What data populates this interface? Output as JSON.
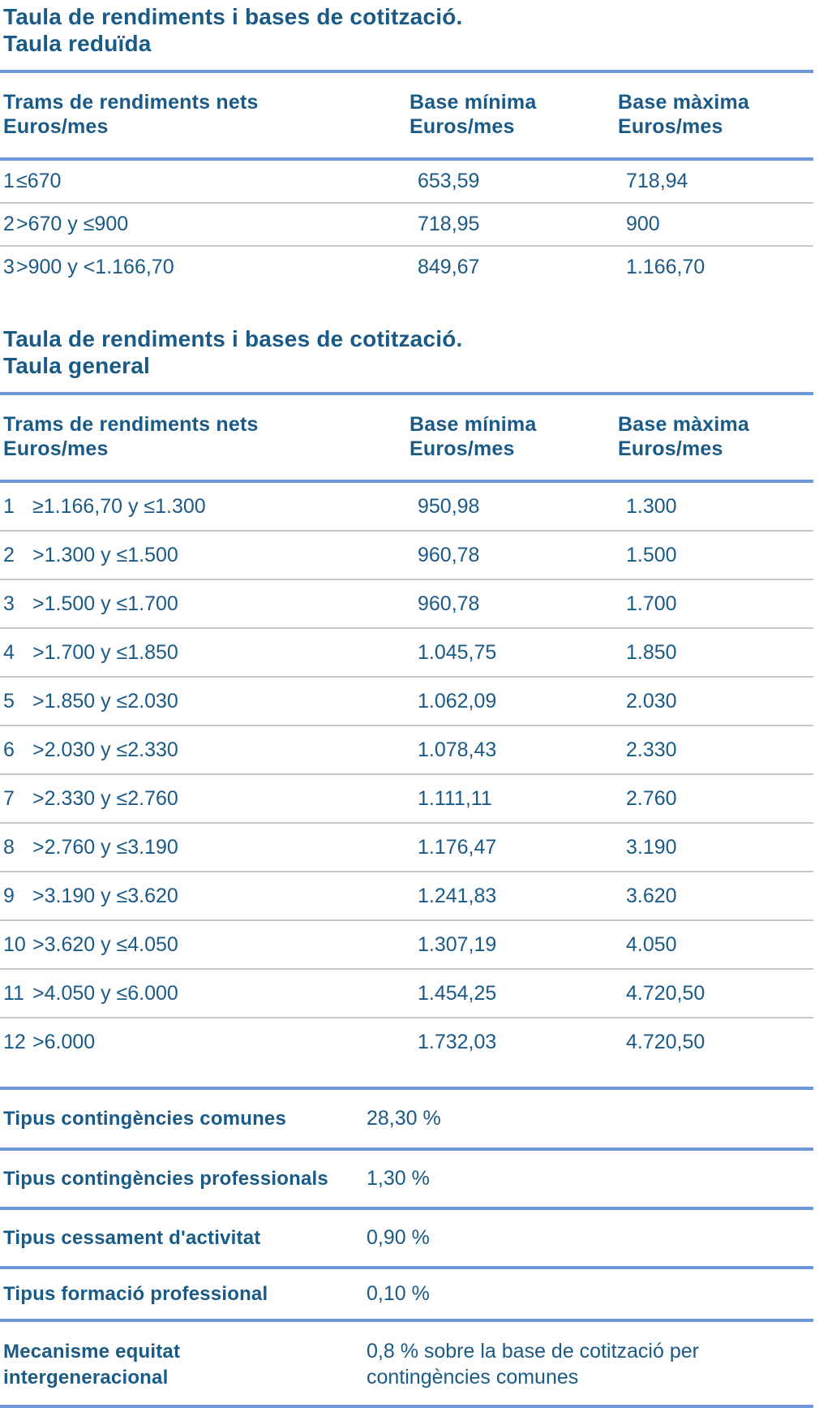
{
  "theme": {
    "text_color": "#1A5A87",
    "accent_line_color": "#6E96D8",
    "row_divider_color": "#C9C9C9",
    "background_color": "#FFFFFF"
  },
  "table_reduced": {
    "title_line1": "Taula de rendiments i bases de cotització.",
    "title_line2": "Taula reduïda",
    "headers": {
      "trams": [
        "Trams de rendiments nets",
        "Euros/mes"
      ],
      "min": [
        "Base mínima",
        "Euros/mes"
      ],
      "max": [
        "Base màxima",
        "Euros/mes"
      ]
    },
    "rows": [
      {
        "num": "1",
        "range": "≤670",
        "min": "653,59",
        "max": "718,94"
      },
      {
        "num": "2",
        "range": ">670 y ≤900",
        "min": "718,95",
        "max": "900"
      },
      {
        "num": "3",
        "range": ">900 y <1.166,70",
        "min": "849,67",
        "max": "1.166,70"
      }
    ]
  },
  "table_general": {
    "title_line1": "Taula de rendiments i bases de cotització.",
    "title_line2": "Taula general",
    "headers": {
      "trams": [
        "Trams de rendiments nets",
        "Euros/mes"
      ],
      "min": [
        "Base mínima",
        "Euros/mes"
      ],
      "max": [
        "Base màxima",
        "Euros/mes"
      ]
    },
    "rows": [
      {
        "num": "1",
        "range": "≥1.166,70 y ≤1.300",
        "min": "950,98",
        "max": "1.300"
      },
      {
        "num": "2",
        "range": ">1.300 y ≤1.500",
        "min": "960,78",
        "max": "1.500"
      },
      {
        "num": "3",
        "range": ">1.500 y ≤1.700",
        "min": "960,78",
        "max": "1.700"
      },
      {
        "num": "4",
        "range": ">1.700 y ≤1.850",
        "min": "1.045,75",
        "max": "1.850"
      },
      {
        "num": "5",
        "range": ">1.850 y ≤2.030",
        "min": "1.062,09",
        "max": "2.030"
      },
      {
        "num": "6",
        "range": ">2.030 y ≤2.330",
        "min": "1.078,43",
        "max": "2.330"
      },
      {
        "num": "7",
        "range": ">2.330 y ≤2.760",
        "min": "1.111,11",
        "max": "2.760"
      },
      {
        "num": "8",
        "range": ">2.760 y ≤3.190",
        "min": "1.176,47",
        "max": "3.190"
      },
      {
        "num": "9",
        "range": ">3.190 y ≤3.620",
        "min": "1.241,83",
        "max": "3.620"
      },
      {
        "num": "10",
        "range": ">3.620 y ≤4.050",
        "min": "1.307,19",
        "max": "4.050"
      },
      {
        "num": "11",
        "range": ">4.050 y ≤6.000",
        "min": "1.454,25",
        "max": "4.720,50"
      },
      {
        "num": "12",
        "range": ">6.000",
        "min": "1.732,03",
        "max": "4.720,50"
      }
    ]
  },
  "rates": [
    {
      "label": "Tipus contingències comunes",
      "value": "28,30 %"
    },
    {
      "label": "Tipus contingències professionals",
      "value": "1,30 %"
    },
    {
      "label": "Tipus cessament d'activitat",
      "value": "0,90 %"
    },
    {
      "label": "Tipus formació professional",
      "value": "0,10 %"
    },
    {
      "label": "Mecanisme equitat intergeneracional",
      "value": "0,8 % sobre la base de cotització per contingències comunes"
    }
  ]
}
